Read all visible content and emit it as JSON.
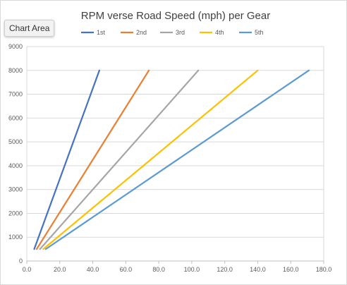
{
  "chart_area_label": "Chart Area",
  "chart_data": {
    "type": "line",
    "title": "RPM verse Road Speed (mph) per Gear",
    "xlabel": "",
    "ylabel": "",
    "xlim": [
      0,
      180
    ],
    "ylim": [
      0,
      9000
    ],
    "x_ticks": [
      "0.0",
      "20.0",
      "40.0",
      "60.0",
      "80.0",
      "100.0",
      "120.0",
      "140.0",
      "160.0",
      "180.0"
    ],
    "y_ticks": [
      "0",
      "1000",
      "2000",
      "3000",
      "4000",
      "5000",
      "6000",
      "7000",
      "8000",
      "9000"
    ],
    "grid": "horizontal",
    "legend_position": "top",
    "series": [
      {
        "name": "1st",
        "color": "#4472C4",
        "points": [
          [
            4.5,
            500
          ],
          [
            44.0,
            8000
          ]
        ]
      },
      {
        "name": "2nd",
        "color": "#ED7D31",
        "points": [
          [
            6.0,
            500
          ],
          [
            74.0,
            8000
          ]
        ]
      },
      {
        "name": "3rd",
        "color": "#A5A5A5",
        "points": [
          [
            8.0,
            500
          ],
          [
            104.0,
            8000
          ]
        ]
      },
      {
        "name": "4th",
        "color": "#FFC000",
        "points": [
          [
            10.0,
            500
          ],
          [
            140.0,
            8000
          ]
        ]
      },
      {
        "name": "5th",
        "color": "#5B9BD5",
        "points": [
          [
            11.5,
            500
          ],
          [
            171.0,
            8000
          ]
        ]
      }
    ]
  }
}
